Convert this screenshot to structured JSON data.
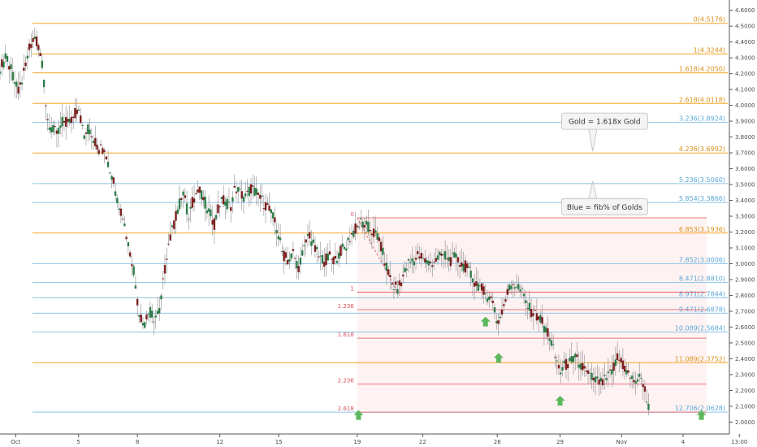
{
  "chart_data": {
    "type": "candlestick",
    "colors": {
      "gold": "#f5a623",
      "blue": "#8ec5e6",
      "red_fib": "#e0505a",
      "candle": "#7d1f1f",
      "wick": "#8a8a8a",
      "arrow": "#5cb85c",
      "zone": "#fdecec"
    },
    "y_axis": {
      "ylim": [
        1.925,
        4.665
      ],
      "ticks": [
        "4.6000",
        "4.5000",
        "4.4000",
        "4.3000",
        "4.2000",
        "4.1000",
        "4.0000",
        "3.9000",
        "3.8000",
        "3.7000",
        "3.6000",
        "3.5000",
        "3.4000",
        "3.3000",
        "3.2000",
        "3.1000",
        "3.0000",
        "2.9000",
        "2.8000",
        "2.7000",
        "2.6000",
        "2.5000",
        "2.4000",
        "2.3000",
        "2.2000",
        "2.1000",
        "2.0000"
      ]
    },
    "x_axis": {
      "domain": [
        0,
        54
      ],
      "ticks": [
        {
          "x": 1.2,
          "label": "Oct"
        },
        {
          "x": 6.0,
          "label": "5"
        },
        {
          "x": 10.5,
          "label": "8"
        },
        {
          "x": 16.8,
          "label": "12"
        },
        {
          "x": 21.3,
          "label": "15"
        },
        {
          "x": 27.3,
          "label": "19"
        },
        {
          "x": 32.3,
          "label": "22"
        },
        {
          "x": 38.0,
          "label": "26"
        },
        {
          "x": 42.8,
          "label": "29"
        },
        {
          "x": 47.5,
          "label": "Nov"
        },
        {
          "x": 52.2,
          "label": "4"
        },
        {
          "x": 56.5,
          "label": "13:00"
        }
      ]
    },
    "gold_levels": [
      {
        "ratio": "0",
        "value": 4.5176,
        "label": "0(4.5176)"
      },
      {
        "ratio": "1",
        "value": 4.3244,
        "label": "1(4.3244)"
      },
      {
        "ratio": "1.618",
        "value": 4.205,
        "label": "1.618(4.2050)"
      },
      {
        "ratio": "2.618",
        "value": 4.0118,
        "label": "2.618(4.0118)"
      },
      {
        "ratio": "4.236",
        "value": 3.6992,
        "label": "4.236(3.6992)"
      },
      {
        "ratio": "6.853",
        "value": 3.1936,
        "label": "6.853(3.1936)"
      },
      {
        "ratio": "11.089",
        "value": 2.3752,
        "label": "11.089(2.3752)"
      }
    ],
    "blue_levels": [
      {
        "ratio": "3.236",
        "value": 3.8924,
        "label": "3.236(3.8924)"
      },
      {
        "ratio": "5.236",
        "value": 3.506,
        "label": "5.236(3.5060)"
      },
      {
        "ratio": "5.854",
        "value": 3.3866,
        "label": "5.854(3.3866)"
      },
      {
        "ratio": "7.852",
        "value": 3.0006,
        "label": "7.852(3.0006)"
      },
      {
        "ratio": "8.471",
        "value": 2.881,
        "label": "8.471(2.8810)"
      },
      {
        "ratio": "8.971",
        "value": 2.7844,
        "label": "8.971(2.7844)"
      },
      {
        "ratio": "9.471",
        "value": 2.6878,
        "label": "9.471(2.6878)"
      },
      {
        "ratio": "10.089",
        "value": 2.5684,
        "label": "10.089(2.5684)"
      },
      {
        "ratio": "12.706",
        "value": 2.0628,
        "label": "12.706(2.0628)"
      }
    ],
    "red_fib": {
      "x_start": 27.3,
      "x_end": 54,
      "levels": [
        {
          "label": "0",
          "value": 3.29
        },
        {
          "label": "1",
          "value": 2.82
        },
        {
          "label": "1.236",
          "value": 2.71
        },
        {
          "label": "1.618",
          "value": 2.53
        },
        {
          "label": "2.236",
          "value": 2.24
        },
        {
          "label": "2.618",
          "value": 2.063
        }
      ]
    },
    "callouts": [
      {
        "text": "Gold = 1.618x Gold",
        "x": 46.2,
        "y": 3.9,
        "pointer_x": 45.3,
        "pointer_y": 3.71
      },
      {
        "text": "Blue = fib% of Golds",
        "x": 46.2,
        "y": 3.36,
        "pointer_x": 45.3,
        "pointer_y": 3.52
      }
    ],
    "arrows": [
      {
        "x": 27.4,
        "y": 2.04
      },
      {
        "x": 37.1,
        "y": 2.63
      },
      {
        "x": 38.1,
        "y": 2.4
      },
      {
        "x": 42.8,
        "y": 2.13
      },
      {
        "x": 53.6,
        "y": 2.04
      }
    ],
    "price_path": [
      [
        0,
        4.24
      ],
      [
        0.5,
        4.3
      ],
      [
        1.0,
        4.18
      ],
      [
        1.4,
        4.08
      ],
      [
        1.9,
        4.22
      ],
      [
        2.3,
        4.38
      ],
      [
        2.7,
        4.44
      ],
      [
        3.0,
        4.36
      ],
      [
        3.3,
        4.2
      ],
      [
        3.6,
        3.92
      ],
      [
        4.0,
        3.84
      ],
      [
        4.4,
        3.82
      ],
      [
        4.8,
        3.9
      ],
      [
        5.2,
        3.88
      ],
      [
        5.6,
        3.92
      ],
      [
        6.0,
        4.0
      ],
      [
        6.4,
        3.8
      ],
      [
        6.8,
        3.86
      ],
      [
        7.2,
        3.78
      ],
      [
        7.6,
        3.72
      ],
      [
        8.0,
        3.74
      ],
      [
        8.3,
        3.62
      ],
      [
        8.6,
        3.55
      ],
      [
        9.0,
        3.4
      ],
      [
        9.4,
        3.3
      ],
      [
        9.8,
        3.12
      ],
      [
        10.2,
        2.98
      ],
      [
        10.6,
        2.7
      ],
      [
        11.0,
        2.62
      ],
      [
        11.4,
        2.7
      ],
      [
        11.8,
        2.66
      ],
      [
        12.2,
        2.7
      ],
      [
        12.5,
        2.9
      ],
      [
        12.8,
        3.1
      ],
      [
        13.2,
        3.22
      ],
      [
        13.6,
        3.35
      ],
      [
        14.0,
        3.45
      ],
      [
        14.4,
        3.3
      ],
      [
        14.8,
        3.42
      ],
      [
        15.2,
        3.46
      ],
      [
        15.6,
        3.4
      ],
      [
        16.0,
        3.32
      ],
      [
        16.4,
        3.25
      ],
      [
        16.8,
        3.38
      ],
      [
        17.2,
        3.4
      ],
      [
        17.6,
        3.36
      ],
      [
        18.0,
        3.48
      ],
      [
        18.4,
        3.44
      ],
      [
        18.8,
        3.42
      ],
      [
        19.2,
        3.48
      ],
      [
        19.6,
        3.44
      ],
      [
        20.0,
        3.4
      ],
      [
        20.4,
        3.36
      ],
      [
        20.8,
        3.3
      ],
      [
        21.2,
        3.22
      ],
      [
        21.6,
        3.06
      ],
      [
        22.0,
        3.02
      ],
      [
        22.4,
        3.06
      ],
      [
        22.8,
        2.98
      ],
      [
        23.2,
        3.08
      ],
      [
        23.6,
        3.2
      ],
      [
        24.0,
        3.1
      ],
      [
        24.4,
        3.04
      ],
      [
        24.8,
        3.02
      ],
      [
        25.2,
        3.04
      ],
      [
        25.6,
        3.02
      ],
      [
        26.0,
        3.08
      ],
      [
        26.4,
        3.1
      ],
      [
        26.8,
        3.18
      ],
      [
        27.2,
        3.22
      ],
      [
        27.6,
        3.26
      ],
      [
        28.0,
        3.24
      ],
      [
        28.4,
        3.2
      ],
      [
        28.8,
        3.18
      ],
      [
        29.2,
        3.08
      ],
      [
        29.6,
        2.96
      ],
      [
        30.0,
        2.86
      ],
      [
        30.4,
        2.84
      ],
      [
        30.8,
        2.92
      ],
      [
        31.2,
        3.0
      ],
      [
        31.6,
        3.02
      ],
      [
        32.0,
        3.06
      ],
      [
        32.4,
        3.02
      ],
      [
        32.8,
        3.0
      ],
      [
        33.2,
        3.02
      ],
      [
        33.6,
        3.04
      ],
      [
        34.0,
        3.06
      ],
      [
        34.4,
        3.02
      ],
      [
        34.8,
        3.04
      ],
      [
        35.2,
        3.0
      ],
      [
        35.6,
        2.98
      ],
      [
        36.0,
        2.92
      ],
      [
        36.4,
        2.88
      ],
      [
        36.8,
        2.84
      ],
      [
        37.2,
        2.8
      ],
      [
        37.6,
        2.78
      ],
      [
        38.0,
        2.62
      ],
      [
        38.4,
        2.72
      ],
      [
        38.8,
        2.82
      ],
      [
        39.2,
        2.88
      ],
      [
        39.6,
        2.86
      ],
      [
        40.0,
        2.8
      ],
      [
        40.4,
        2.72
      ],
      [
        40.8,
        2.68
      ],
      [
        41.2,
        2.66
      ],
      [
        41.6,
        2.6
      ],
      [
        42.0,
        2.54
      ],
      [
        42.4,
        2.42
      ],
      [
        42.8,
        2.32
      ],
      [
        43.2,
        2.36
      ],
      [
        43.6,
        2.38
      ],
      [
        44.0,
        2.4
      ],
      [
        44.4,
        2.36
      ],
      [
        44.8,
        2.3
      ],
      [
        45.2,
        2.28
      ],
      [
        45.6,
        2.26
      ],
      [
        46.0,
        2.24
      ],
      [
        46.4,
        2.28
      ],
      [
        46.8,
        2.32
      ],
      [
        47.2,
        2.4
      ],
      [
        47.6,
        2.36
      ],
      [
        48.0,
        2.3
      ],
      [
        48.4,
        2.26
      ],
      [
        48.8,
        2.28
      ],
      [
        49.2,
        2.24
      ],
      [
        49.5,
        2.1
      ],
      [
        49.7,
        2.06
      ]
    ]
  }
}
